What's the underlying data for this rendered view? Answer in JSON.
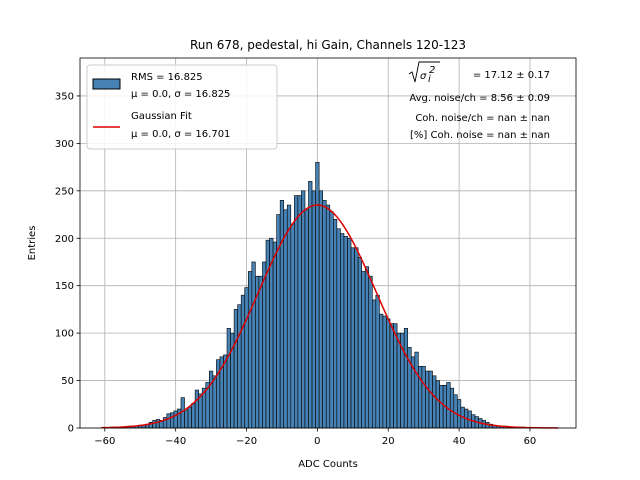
{
  "chart_data": {
    "type": "bar",
    "title": "Run 678, pedestal, hi Gain, Channels 120-123",
    "xlabel": "ADC Counts",
    "ylabel": "Entries",
    "xlim": [
      -67,
      73
    ],
    "ylim": [
      0,
      390
    ],
    "xticks": [
      -60,
      -40,
      -20,
      0,
      20,
      40,
      60
    ],
    "yticks": [
      0,
      50,
      100,
      150,
      200,
      250,
      300,
      350
    ],
    "grid": true,
    "bin_width": 1,
    "bin_start": -61,
    "bin_end": 68,
    "series": [
      {
        "name": "RMS = 16.825",
        "name_line2": "μ = 0.0, σ = 16.825",
        "color": "#4682b4",
        "x": [
          -49,
          -48,
          -47,
          -46,
          -45,
          -44,
          -43,
          -42,
          -41,
          -40,
          -39,
          -38,
          -37,
          -36,
          -35,
          -34,
          -33,
          -32,
          -31,
          -30,
          -29,
          -28,
          -27,
          -26,
          -25,
          -24,
          -23,
          -22,
          -21,
          -20,
          -19,
          -18,
          -17,
          -16,
          -15,
          -14,
          -13,
          -12,
          -11,
          -10,
          -9,
          -8,
          -7,
          -6,
          -5,
          -4,
          -3,
          -2,
          -1,
          0,
          1,
          2,
          3,
          4,
          5,
          6,
          7,
          8,
          9,
          10,
          11,
          12,
          13,
          14,
          15,
          16,
          17,
          18,
          19,
          20,
          21,
          22,
          23,
          24,
          25,
          26,
          27,
          28,
          29,
          30,
          31,
          32,
          33,
          34,
          35,
          36,
          37,
          38,
          39,
          40,
          41,
          42,
          43,
          44,
          45,
          46,
          47,
          48,
          49,
          50
        ],
        "values": [
          3,
          4,
          6,
          8,
          9,
          8,
          11,
          15,
          16,
          18,
          20,
          32,
          19,
          22,
          26,
          40,
          36,
          42,
          48,
          60,
          55,
          72,
          75,
          77,
          105,
          100,
          125,
          130,
          140,
          148,
          165,
          175,
          160,
          160,
          175,
          198,
          200,
          196,
          225,
          240,
          230,
          235,
          215,
          245,
          245,
          250,
          230,
          260,
          250,
          280,
          250,
          240,
          235,
          228,
          220,
          210,
          205,
          202,
          200,
          190,
          190,
          180,
          165,
          170,
          160,
          135,
          140,
          120,
          118,
          115,
          110,
          110,
          100,
          100,
          105,
          85,
          75,
          80,
          65,
          65,
          60,
          60,
          55,
          50,
          45,
          45,
          48,
          42,
          35,
          30,
          22,
          20,
          18,
          14,
          12,
          10,
          8,
          6,
          4,
          3
        ]
      }
    ],
    "fit": {
      "name": "Gaussian Fit",
      "name_line2": "μ = 0.0, σ = 16.701",
      "color": "#dd0000",
      "mu": 0.0,
      "sigma": 16.701,
      "amplitude": 235
    },
    "legend_position": "upper-left",
    "annotations": {
      "line1_value": " = 17.12 ± 0.17",
      "line2": "Avg. noise/ch = 8.56 ± 0.09",
      "line3": "Coh. noise/ch = nan ± nan",
      "line4": "[%] Coh. noise = nan ± nan"
    }
  }
}
